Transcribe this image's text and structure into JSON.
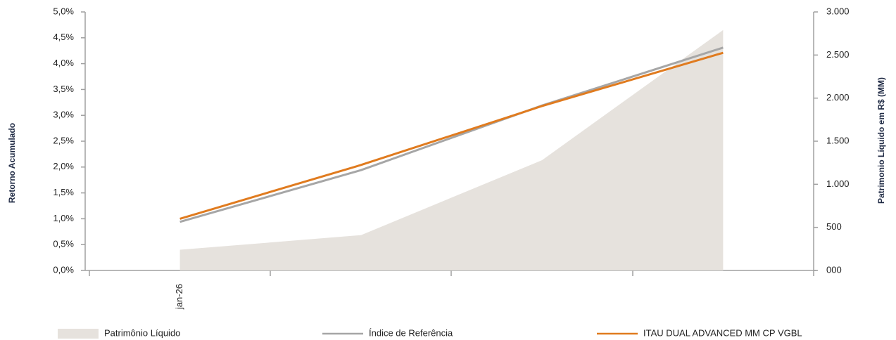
{
  "chart_data": {
    "type": "line",
    "y_label": "Retorno Acumulado",
    "y2_label": "Patrimonio Líquido em R$ (MM)",
    "categories": [
      "jan-26",
      null,
      null,
      null
    ],
    "ylim": [
      0,
      5
    ],
    "yticks": [
      {
        "value": 0,
        "label": "0,0%"
      },
      {
        "value": 0.5,
        "label": "0,5%"
      },
      {
        "value": 1,
        "label": "1,0%"
      },
      {
        "value": 1.5,
        "label": "1,5%"
      },
      {
        "value": 2,
        "label": "2,0%"
      },
      {
        "value": 2.5,
        "label": "2,5%"
      },
      {
        "value": 3,
        "label": "3,0%"
      },
      {
        "value": 3.5,
        "label": "3,5%"
      },
      {
        "value": 4,
        "label": "4,0%"
      },
      {
        "value": 4.5,
        "label": "4,5%"
      },
      {
        "value": 5,
        "label": "5,0%"
      }
    ],
    "y2lim": [
      0,
      3000
    ],
    "y2ticks": [
      {
        "value": 0,
        "label": "000"
      },
      500,
      {
        "value": 1000,
        "label": "1.000"
      },
      {
        "value": 1500,
        "label": "1.500"
      },
      {
        "value": 2000,
        "label": "2.000"
      },
      {
        "value": 2500,
        "label": "2.500"
      },
      {
        "value": 3000,
        "label": "3.000"
      }
    ],
    "series": [
      {
        "name": "Patrimônio Líquido",
        "type": "area",
        "axis": "y2",
        "color": "#e6e2dd",
        "values": [
          240,
          410,
          1280,
          2790
        ]
      },
      {
        "name": "Índice de Referência",
        "type": "line",
        "color": "#a6a6a6",
        "values": [
          0.94,
          1.94,
          3.19,
          4.31
        ]
      },
      {
        "name": "ITAU DUAL ADVANCED MM CP VGBL",
        "type": "line",
        "color": "#e07b1f",
        "values": [
          1.0,
          2.04,
          3.18,
          4.21
        ]
      }
    ],
    "legend": "bottom"
  }
}
